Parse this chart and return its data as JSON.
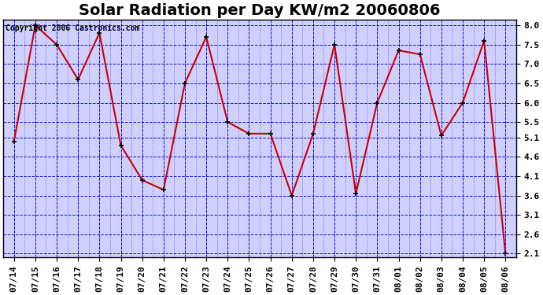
{
  "title": "Solar Radiation per Day KW/m2 20060806",
  "copyright": "Copyright 2006 Castronics.com",
  "dates": [
    "07/14",
    "07/15",
    "07/16",
    "07/17",
    "07/18",
    "07/19",
    "07/20",
    "07/21",
    "07/22",
    "07/23",
    "07/24",
    "07/25",
    "07/26",
    "07/27",
    "07/28",
    "07/29",
    "07/30",
    "07/31",
    "08/01",
    "08/02",
    "08/03",
    "08/04",
    "08/05",
    "08/06"
  ],
  "values": [
    5.0,
    8.0,
    7.5,
    6.6,
    7.8,
    4.9,
    4.0,
    3.75,
    6.5,
    7.7,
    5.5,
    5.2,
    5.2,
    3.6,
    5.2,
    7.5,
    3.65,
    6.0,
    7.35,
    7.25,
    5.15,
    6.0,
    7.6,
    2.1
  ],
  "line_color": "#cc0000",
  "marker_color": "#000000",
  "bg_color": "#ffffff",
  "plot_bg_color": "#d0d0ff",
  "grid_color_h": "#0000cc",
  "grid_color_v": "#0000cc",
  "yticks": [
    2.1,
    2.6,
    3.1,
    3.6,
    4.1,
    4.6,
    5.1,
    5.5,
    6.0,
    6.5,
    7.0,
    7.5,
    8.0
  ],
  "title_fontsize": 14,
  "tick_fontsize": 8,
  "copyright_fontsize": 7
}
